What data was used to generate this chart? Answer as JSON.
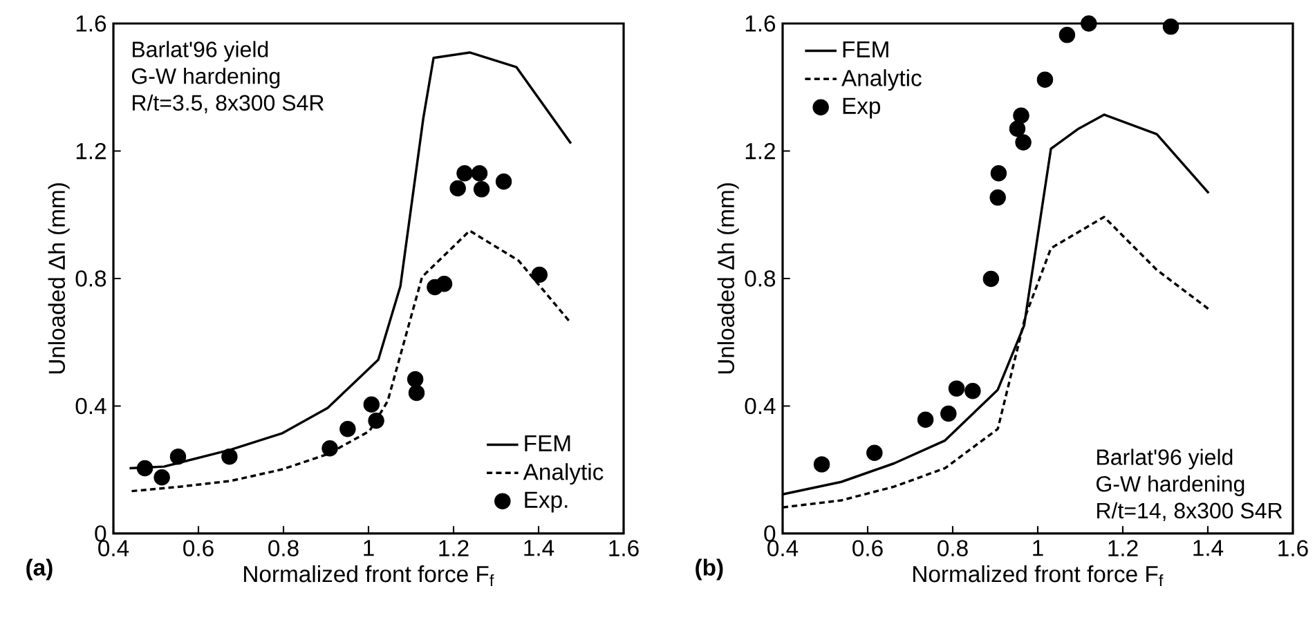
{
  "chart_data": [
    {
      "type": "line",
      "xlabel": "Normalized front force F$_{f}$",
      "ylabel": "Unloaded Δh (mm)",
      "xlim": [
        0.4,
        1.6
      ],
      "ylim": [
        0,
        1.6
      ],
      "xticks": [
        0.4,
        0.6,
        0.8,
        1,
        1.2,
        1.4,
        1.6
      ],
      "yticks": [
        0,
        0.4,
        0.8,
        1.2,
        1.6
      ],
      "legend": "bottom right",
      "annotations": [
        "(a)",
        "Barlat'96 yield",
        "G-W hardening",
        "R/t=3.5, 8x300 S4R"
      ],
      "series": [
        {
          "name": "FEM",
          "color": "#000000",
          "line_style": "solid",
          "x": [
            0.438,
            0.519,
            0.676,
            0.796,
            0.904,
            1.023,
            1.075,
            1.129,
            1.153,
            1.238,
            1.348,
            1.476
          ],
          "values": [
            0.205,
            0.21,
            0.263,
            0.314,
            0.394,
            0.545,
            0.776,
            1.304,
            1.492,
            1.509,
            1.463,
            1.224
          ]
        },
        {
          "name": "Analytic",
          "color": "#000000",
          "line_style": "dashed",
          "x": [
            0.443,
            0.557,
            0.676,
            0.796,
            0.904,
            1.002,
            1.045,
            1.126,
            1.238,
            1.353,
            1.476
          ],
          "values": [
            0.133,
            0.147,
            0.165,
            0.201,
            0.249,
            0.321,
            0.415,
            0.805,
            0.95,
            0.856,
            0.66
          ]
        },
        {
          "name": "Exp.",
          "type": "scatter",
          "marker": "circle",
          "color": "#000000",
          "x": [
            0.474,
            0.514,
            0.552,
            0.673,
            0.909,
            0.951,
            1.007,
            1.018,
            1.11,
            1.113,
            1.156,
            1.178,
            1.21,
            1.226,
            1.261,
            1.266,
            1.318,
            1.402
          ],
          "values": [
            0.205,
            0.176,
            0.241,
            0.241,
            0.267,
            0.328,
            0.405,
            0.354,
            0.484,
            0.441,
            0.773,
            0.783,
            1.083,
            1.13,
            1.13,
            1.08,
            1.104,
            0.812
          ]
        }
      ]
    },
    {
      "type": "line",
      "xlabel": "Normalized front force F$_{f}$",
      "ylabel": "Unloaded Δh (mm)",
      "xlim": [
        0.4,
        1.6
      ],
      "ylim": [
        0,
        1.6
      ],
      "xticks": [
        0.4,
        0.6,
        0.8,
        1,
        1.2,
        1.4,
        1.6
      ],
      "yticks": [
        0,
        0.4,
        0.8,
        1.2,
        1.6
      ],
      "legend": "top left",
      "annotations": [
        "(b)",
        "Barlat'96 yield",
        "G-W hardening",
        "R/t=14, 8x300 S4R"
      ],
      "series": [
        {
          "name": "FEM",
          "color": "#000000",
          "line_style": "solid",
          "x": [
            0.4,
            0.538,
            0.662,
            0.782,
            0.906,
            0.968,
            1.031,
            1.096,
            1.156,
            1.28,
            1.402
          ],
          "values": [
            0.123,
            0.162,
            0.22,
            0.292,
            0.451,
            0.653,
            1.207,
            1.27,
            1.314,
            1.253,
            1.068
          ]
        },
        {
          "name": "Analytic",
          "color": "#000000",
          "line_style": "dashed",
          "x": [
            0.4,
            0.538,
            0.662,
            0.782,
            0.906,
            0.971,
            1.031,
            1.156,
            1.28,
            1.402
          ],
          "values": [
            0.082,
            0.104,
            0.147,
            0.205,
            0.328,
            0.682,
            0.895,
            0.993,
            0.827,
            0.704
          ]
        },
        {
          "name": "Exp",
          "type": "scatter",
          "marker": "circle",
          "color": "#000000",
          "x": [
            0.492,
            0.616,
            0.736,
            0.787,
            0.79,
            0.809,
            0.847,
            0.89,
            0.906,
            0.908,
            0.952,
            0.961,
            0.966,
            1.017,
            1.069,
            1.12,
            1.313
          ],
          "values": [
            0.217,
            0.253,
            0.357,
            null,
            0.376,
            0.455,
            0.447,
            0.799,
            1.054,
            1.13,
            1.27,
            1.311,
            1.227,
            1.424,
            1.564,
            1.6,
            1.59
          ]
        }
      ]
    }
  ]
}
